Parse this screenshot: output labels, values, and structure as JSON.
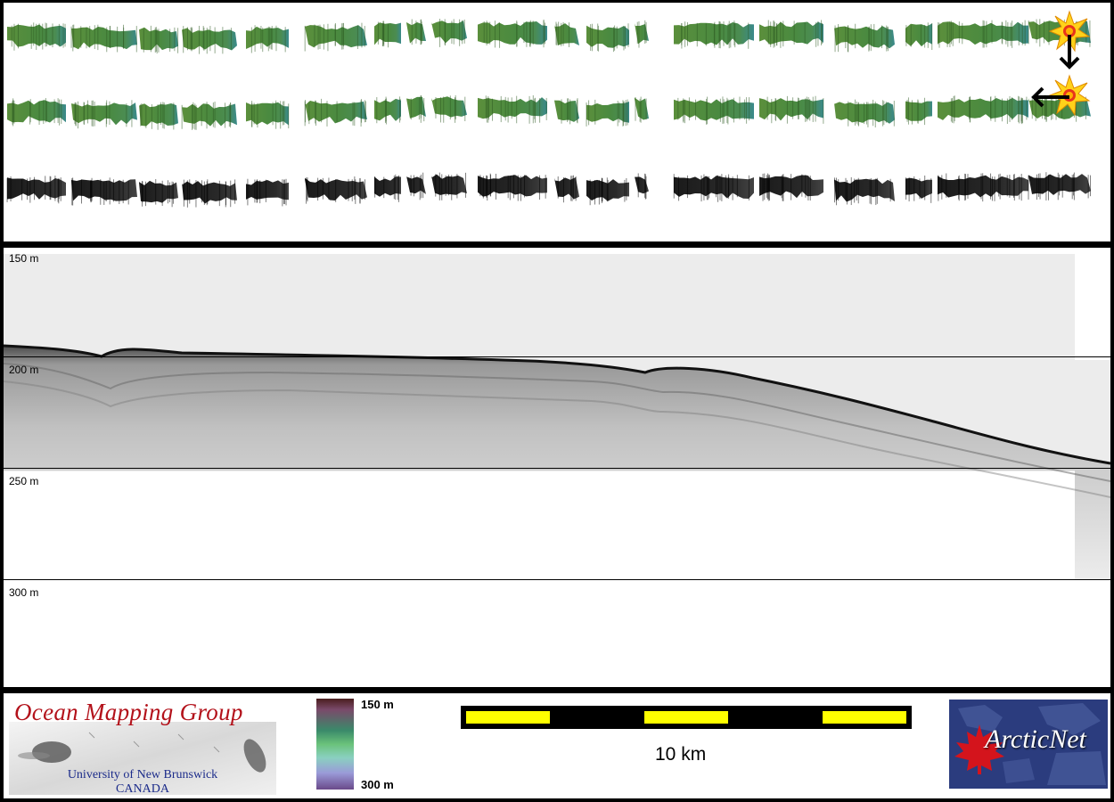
{
  "profile": {
    "depth_labels": [
      "150 m",
      "200 m",
      "250 m",
      "300 m"
    ]
  },
  "footer": {
    "ocean_mapping": {
      "title": "Ocean Mapping Group",
      "subtitle_line1": "University of New Brunswick",
      "subtitle_line2": "CANADA"
    },
    "colorbar": {
      "top_label": "150 m",
      "bottom_label": "300 m"
    },
    "scale_bar": {
      "label": "10 km"
    },
    "arcticnet": {
      "logo_text": "ArcticNet"
    }
  },
  "colors": {
    "background": "#000000",
    "panel": "#ffffff",
    "swath_green": "#4e8f3a",
    "swath_teal": "#3d8a86",
    "scale_yellow": "#ffff00",
    "ocean_title_red": "#b3121b",
    "ocean_sub_blue": "#1b2b8a",
    "arcticnet_blue": "#2b3c7e",
    "maple_red": "#d4141c"
  },
  "icons": [
    "sun-marker-icon",
    "arrow-down-icon",
    "arrow-left-icon",
    "maple-leaf-icon"
  ]
}
